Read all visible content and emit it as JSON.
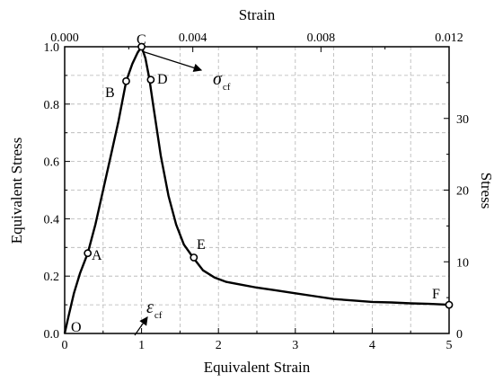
{
  "chart_data": {
    "type": "line",
    "x_axis": {
      "label": "Equivalent Strain",
      "range": [
        0,
        5
      ],
      "ticks": [
        "0",
        "1",
        "2",
        "3",
        "4",
        "5"
      ]
    },
    "y_axis_left": {
      "label": "Equivalent Stress",
      "range": [
        0,
        1.0
      ],
      "ticks": [
        "0.0",
        "0.2",
        "0.4",
        "0.6",
        "0.8",
        "1.0"
      ]
    },
    "x_axis_top": {
      "label": "Strain",
      "range": [
        0,
        0.012
      ],
      "tick_values": [
        0,
        0.004,
        0.008,
        0.012
      ],
      "ticks": [
        "0.000",
        "0.004",
        "0.008",
        "0.012"
      ]
    },
    "y_axis_right": {
      "label": "Stress",
      "range": [
        0,
        40
      ],
      "tick_values": [
        0,
        10,
        20,
        30
      ],
      "ticks": [
        "0",
        "10",
        "20",
        "30"
      ]
    },
    "grid": true,
    "series": [
      {
        "x": [
          0,
          0.05,
          0.12,
          0.2,
          0.3,
          0.4,
          0.5,
          0.6,
          0.7,
          0.8,
          0.88,
          0.95,
          1.0,
          1.05,
          1.1,
          1.15,
          1.25,
          1.35,
          1.45,
          1.55,
          1.67,
          1.8,
          1.95,
          2.1,
          2.3,
          2.5,
          2.75,
          3.0,
          3.25,
          3.5,
          3.75,
          4.0,
          4.25,
          4.5,
          4.75,
          5.0
        ],
        "y": [
          0,
          0.06,
          0.14,
          0.21,
          0.28,
          0.38,
          0.5,
          0.62,
          0.74,
          0.88,
          0.94,
          0.98,
          1.0,
          0.96,
          0.89,
          0.8,
          0.62,
          0.48,
          0.38,
          0.31,
          0.265,
          0.22,
          0.195,
          0.18,
          0.17,
          0.16,
          0.15,
          0.14,
          0.13,
          0.12,
          0.115,
          0.11,
          0.108,
          0.105,
          0.103,
          0.1
        ]
      }
    ],
    "points": [
      {
        "label": "O",
        "x": 0,
        "y": 0
      },
      {
        "label": "A",
        "x": 0.3,
        "y": 0.28
      },
      {
        "label": "B",
        "x": 0.8,
        "y": 0.88
      },
      {
        "label": "C",
        "x": 1.0,
        "y": 1.0
      },
      {
        "label": "D",
        "x": 1.12,
        "y": 0.885
      },
      {
        "label": "E",
        "x": 1.68,
        "y": 0.265
      },
      {
        "label": "F",
        "x": 5.0,
        "y": 0.1
      }
    ],
    "annotations": [
      {
        "main": "σ",
        "sub": "cf"
      },
      {
        "main": "ε",
        "sub": "cf"
      }
    ]
  }
}
